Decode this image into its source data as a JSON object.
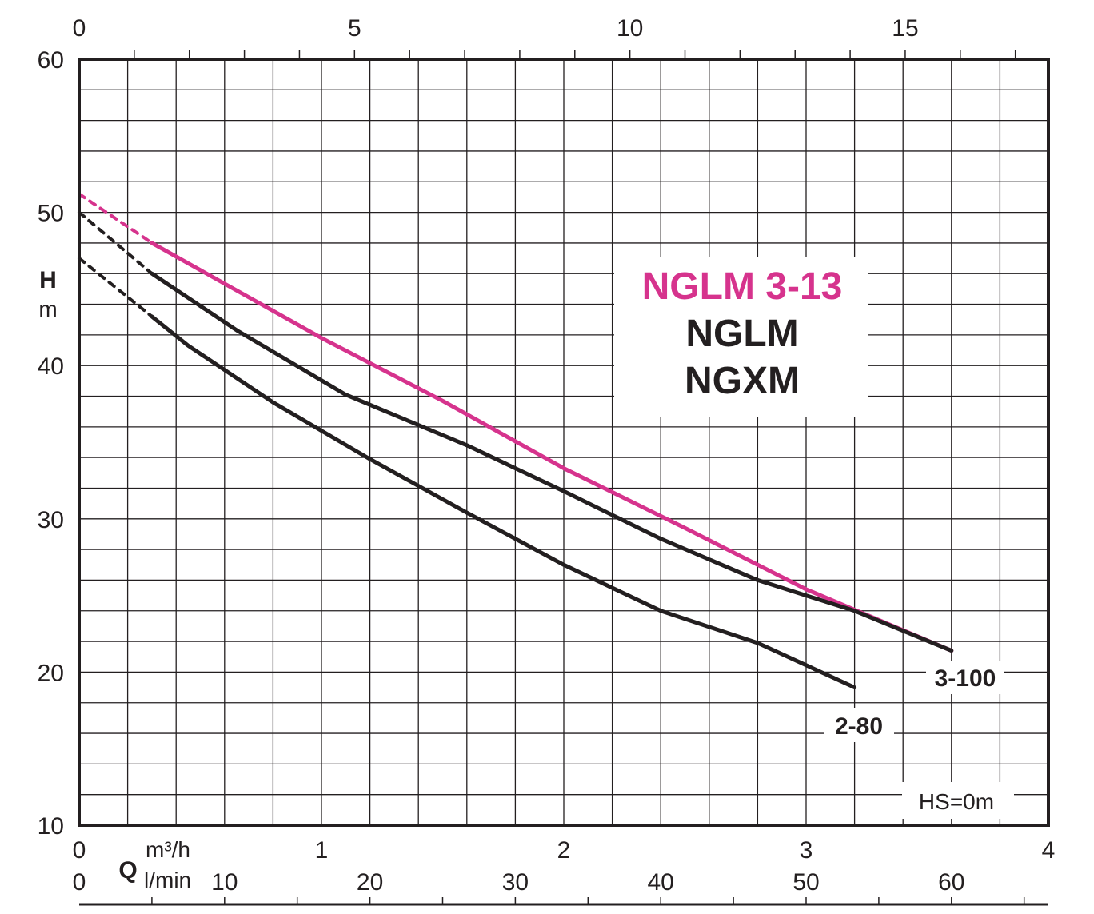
{
  "chart_data": {
    "type": "line",
    "title_lines": [
      "NGLM 3-13",
      "NGLM",
      "NGXM"
    ],
    "title_colors": [
      "#d6338d",
      "#231f20",
      "#231f20"
    ],
    "ylabel": "H",
    "yunit": "m",
    "ylim": [
      10,
      60
    ],
    "yticks": [
      10,
      20,
      30,
      40,
      50,
      60
    ],
    "x_axes": {
      "m3h": {
        "unit": "m³/h",
        "range": [
          0,
          4
        ],
        "ticks": [
          0,
          1,
          2,
          3,
          4
        ]
      },
      "lmin": {
        "label": "Q",
        "unit": "l/min",
        "ticks": [
          0,
          10,
          20,
          30,
          40,
          50,
          60
        ]
      },
      "top": {
        "range": [
          0,
          17.6
        ],
        "ticks": [
          0,
          5,
          10,
          15
        ]
      }
    },
    "note": "HS=0m",
    "grid": true,
    "series": [
      {
        "name": "3-100",
        "color": "#d6338d",
        "dashed_points": [
          [
            0,
            51.2
          ],
          [
            0.3,
            48.0
          ]
        ],
        "points": [
          [
            0.3,
            48.0
          ],
          [
            1.0,
            41.8
          ],
          [
            1.5,
            37.7
          ],
          [
            2.0,
            33.3
          ],
          [
            2.5,
            29.4
          ],
          [
            3.0,
            25.4
          ],
          [
            3.6,
            21.4
          ]
        ]
      },
      {
        "name": "",
        "color": "#231f20",
        "dashed_points": [
          [
            0,
            50.0
          ],
          [
            0.3,
            46.0
          ]
        ],
        "points": [
          [
            0.3,
            46.0
          ],
          [
            0.65,
            42.3
          ],
          [
            1.1,
            38.1
          ],
          [
            1.6,
            34.8
          ],
          [
            2.0,
            31.8
          ],
          [
            2.4,
            28.7
          ],
          [
            2.8,
            26.0
          ],
          [
            3.2,
            24.0
          ],
          [
            3.6,
            21.4
          ]
        ]
      },
      {
        "name": "2-80",
        "color": "#231f20",
        "dashed_points": [
          [
            0,
            47.0
          ],
          [
            0.3,
            43.2
          ]
        ],
        "points": [
          [
            0.3,
            43.2
          ],
          [
            0.45,
            41.3
          ],
          [
            0.8,
            37.6
          ],
          [
            1.2,
            33.9
          ],
          [
            1.6,
            30.4
          ],
          [
            2.0,
            27.0
          ],
          [
            2.4,
            24.0
          ],
          [
            2.8,
            21.9
          ],
          [
            3.2,
            19.0
          ]
        ]
      }
    ]
  }
}
